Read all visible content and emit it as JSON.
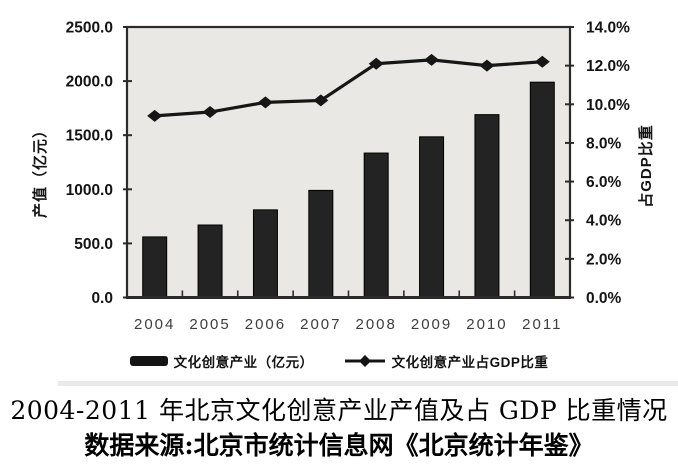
{
  "caption": {
    "line1": "2004-2011 年北京文化创意产业产值及占 GDP 比重情况",
    "line2": "数据来源:北京市统计信息网《北京统计年鉴》"
  },
  "chart_data": {
    "type": "bar+line",
    "title": "2004-2011 年北京文化创意产业产值及占 GDP 比重情况",
    "categories": [
      "2004",
      "2005",
      "2006",
      "2007",
      "2008",
      "2009",
      "2010",
      "2011"
    ],
    "series": [
      {
        "name": "文化创意产业（亿元）",
        "type": "bar",
        "axis": "left",
        "values": [
          560,
          670,
          810,
          990,
          1335,
          1485,
          1690,
          1990
        ]
      },
      {
        "name": "文化创意产业占GDP比重",
        "type": "line",
        "marker": "diamond",
        "axis": "right",
        "values": [
          9.4,
          9.6,
          10.1,
          10.2,
          12.1,
          12.3,
          12.0,
          12.2
        ]
      }
    ],
    "left_axis": {
      "label": "产值（亿元）",
      "min": 0,
      "max": 2500,
      "ticks": [
        "2500.0",
        "2000.0",
        "1500.0",
        "1000.0",
        "500.0",
        "0.0"
      ]
    },
    "right_axis": {
      "label": "占GDP比重",
      "min": 0,
      "max": 14,
      "ticks": [
        "14.0%",
        "12.0%",
        "10.0%",
        "8.0%",
        "6.0%",
        "4.0%",
        "2.0%",
        "0.0%"
      ]
    },
    "legend_position": "bottom",
    "grid": false,
    "colors": {
      "bar": "#232323",
      "line": "#161616",
      "plot_bg": "#e9e8e5",
      "spine": "#2b2b2b",
      "tick_text": "#141414",
      "year_text": "#3d3d3d"
    }
  }
}
